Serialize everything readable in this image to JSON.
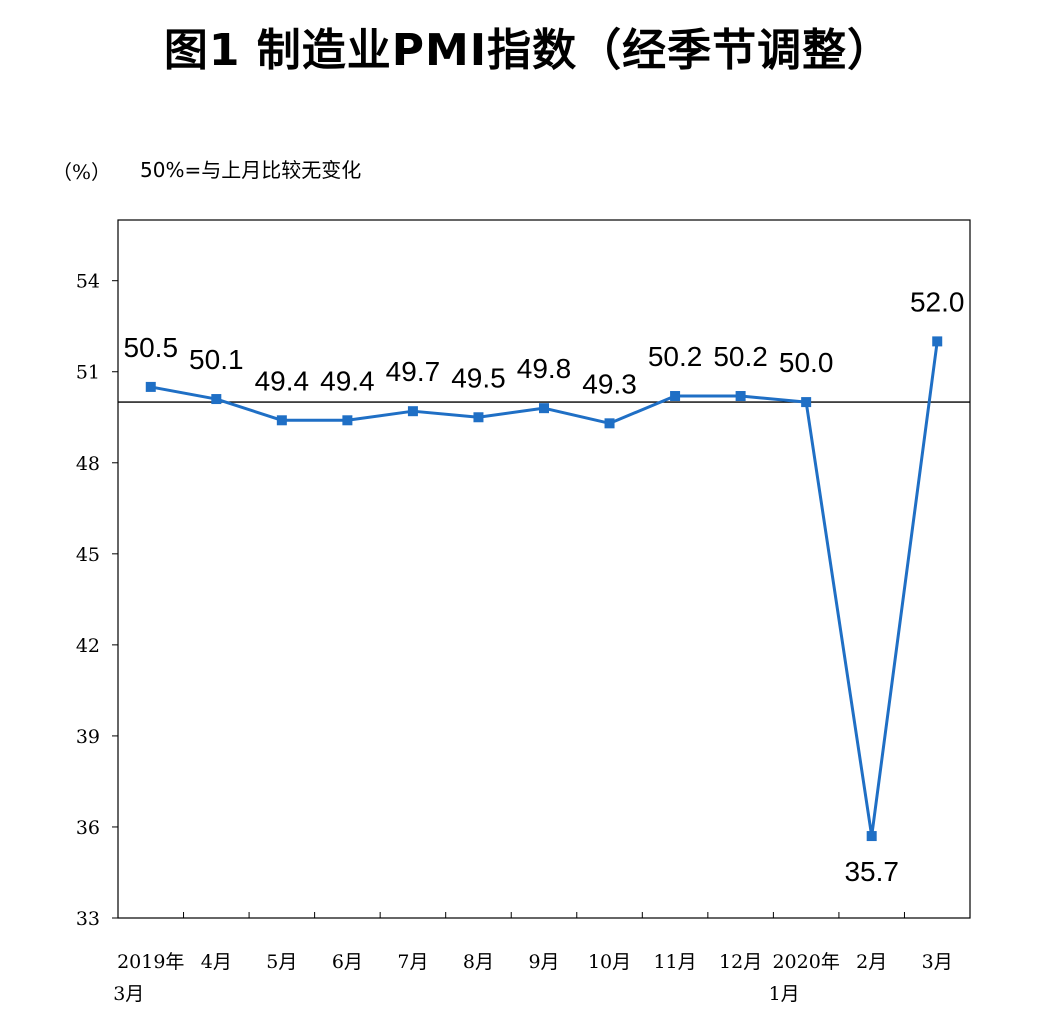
{
  "chart_data": {
    "type": "line",
    "title": "图1 制造业PMI指数（经季节调整）",
    "unit": "（%）",
    "note": "50%=与上月比较无变化",
    "categories": [
      [
        "2019年",
        "3月"
      ],
      [
        "4月"
      ],
      [
        "5月"
      ],
      [
        "6月"
      ],
      [
        "7月"
      ],
      [
        "8月"
      ],
      [
        "9月"
      ],
      [
        "10月"
      ],
      [
        "11月"
      ],
      [
        "12月"
      ],
      [
        "2020年",
        "1月"
      ],
      [
        "2月"
      ],
      [
        "3月"
      ]
    ],
    "series": [
      {
        "values": [
          50.5,
          50.1,
          49.4,
          49.4,
          49.7,
          49.5,
          49.8,
          49.3,
          50.2,
          50.2,
          50.0,
          35.7,
          52.0
        ],
        "labels": [
          "50.5",
          "50.1",
          "49.4",
          "49.4",
          "49.7",
          "49.5",
          "49.8",
          "49.3",
          "50.2",
          "50.2",
          "50.0",
          "35.7",
          "52.0"
        ],
        "color": "#1f6fc5"
      }
    ],
    "yticks": [
      "33",
      "36",
      "39",
      "42",
      "45",
      "48",
      "51",
      "54"
    ],
    "ylim": [
      33,
      56
    ],
    "reference_value": 50,
    "grid": false,
    "legend": "none"
  }
}
